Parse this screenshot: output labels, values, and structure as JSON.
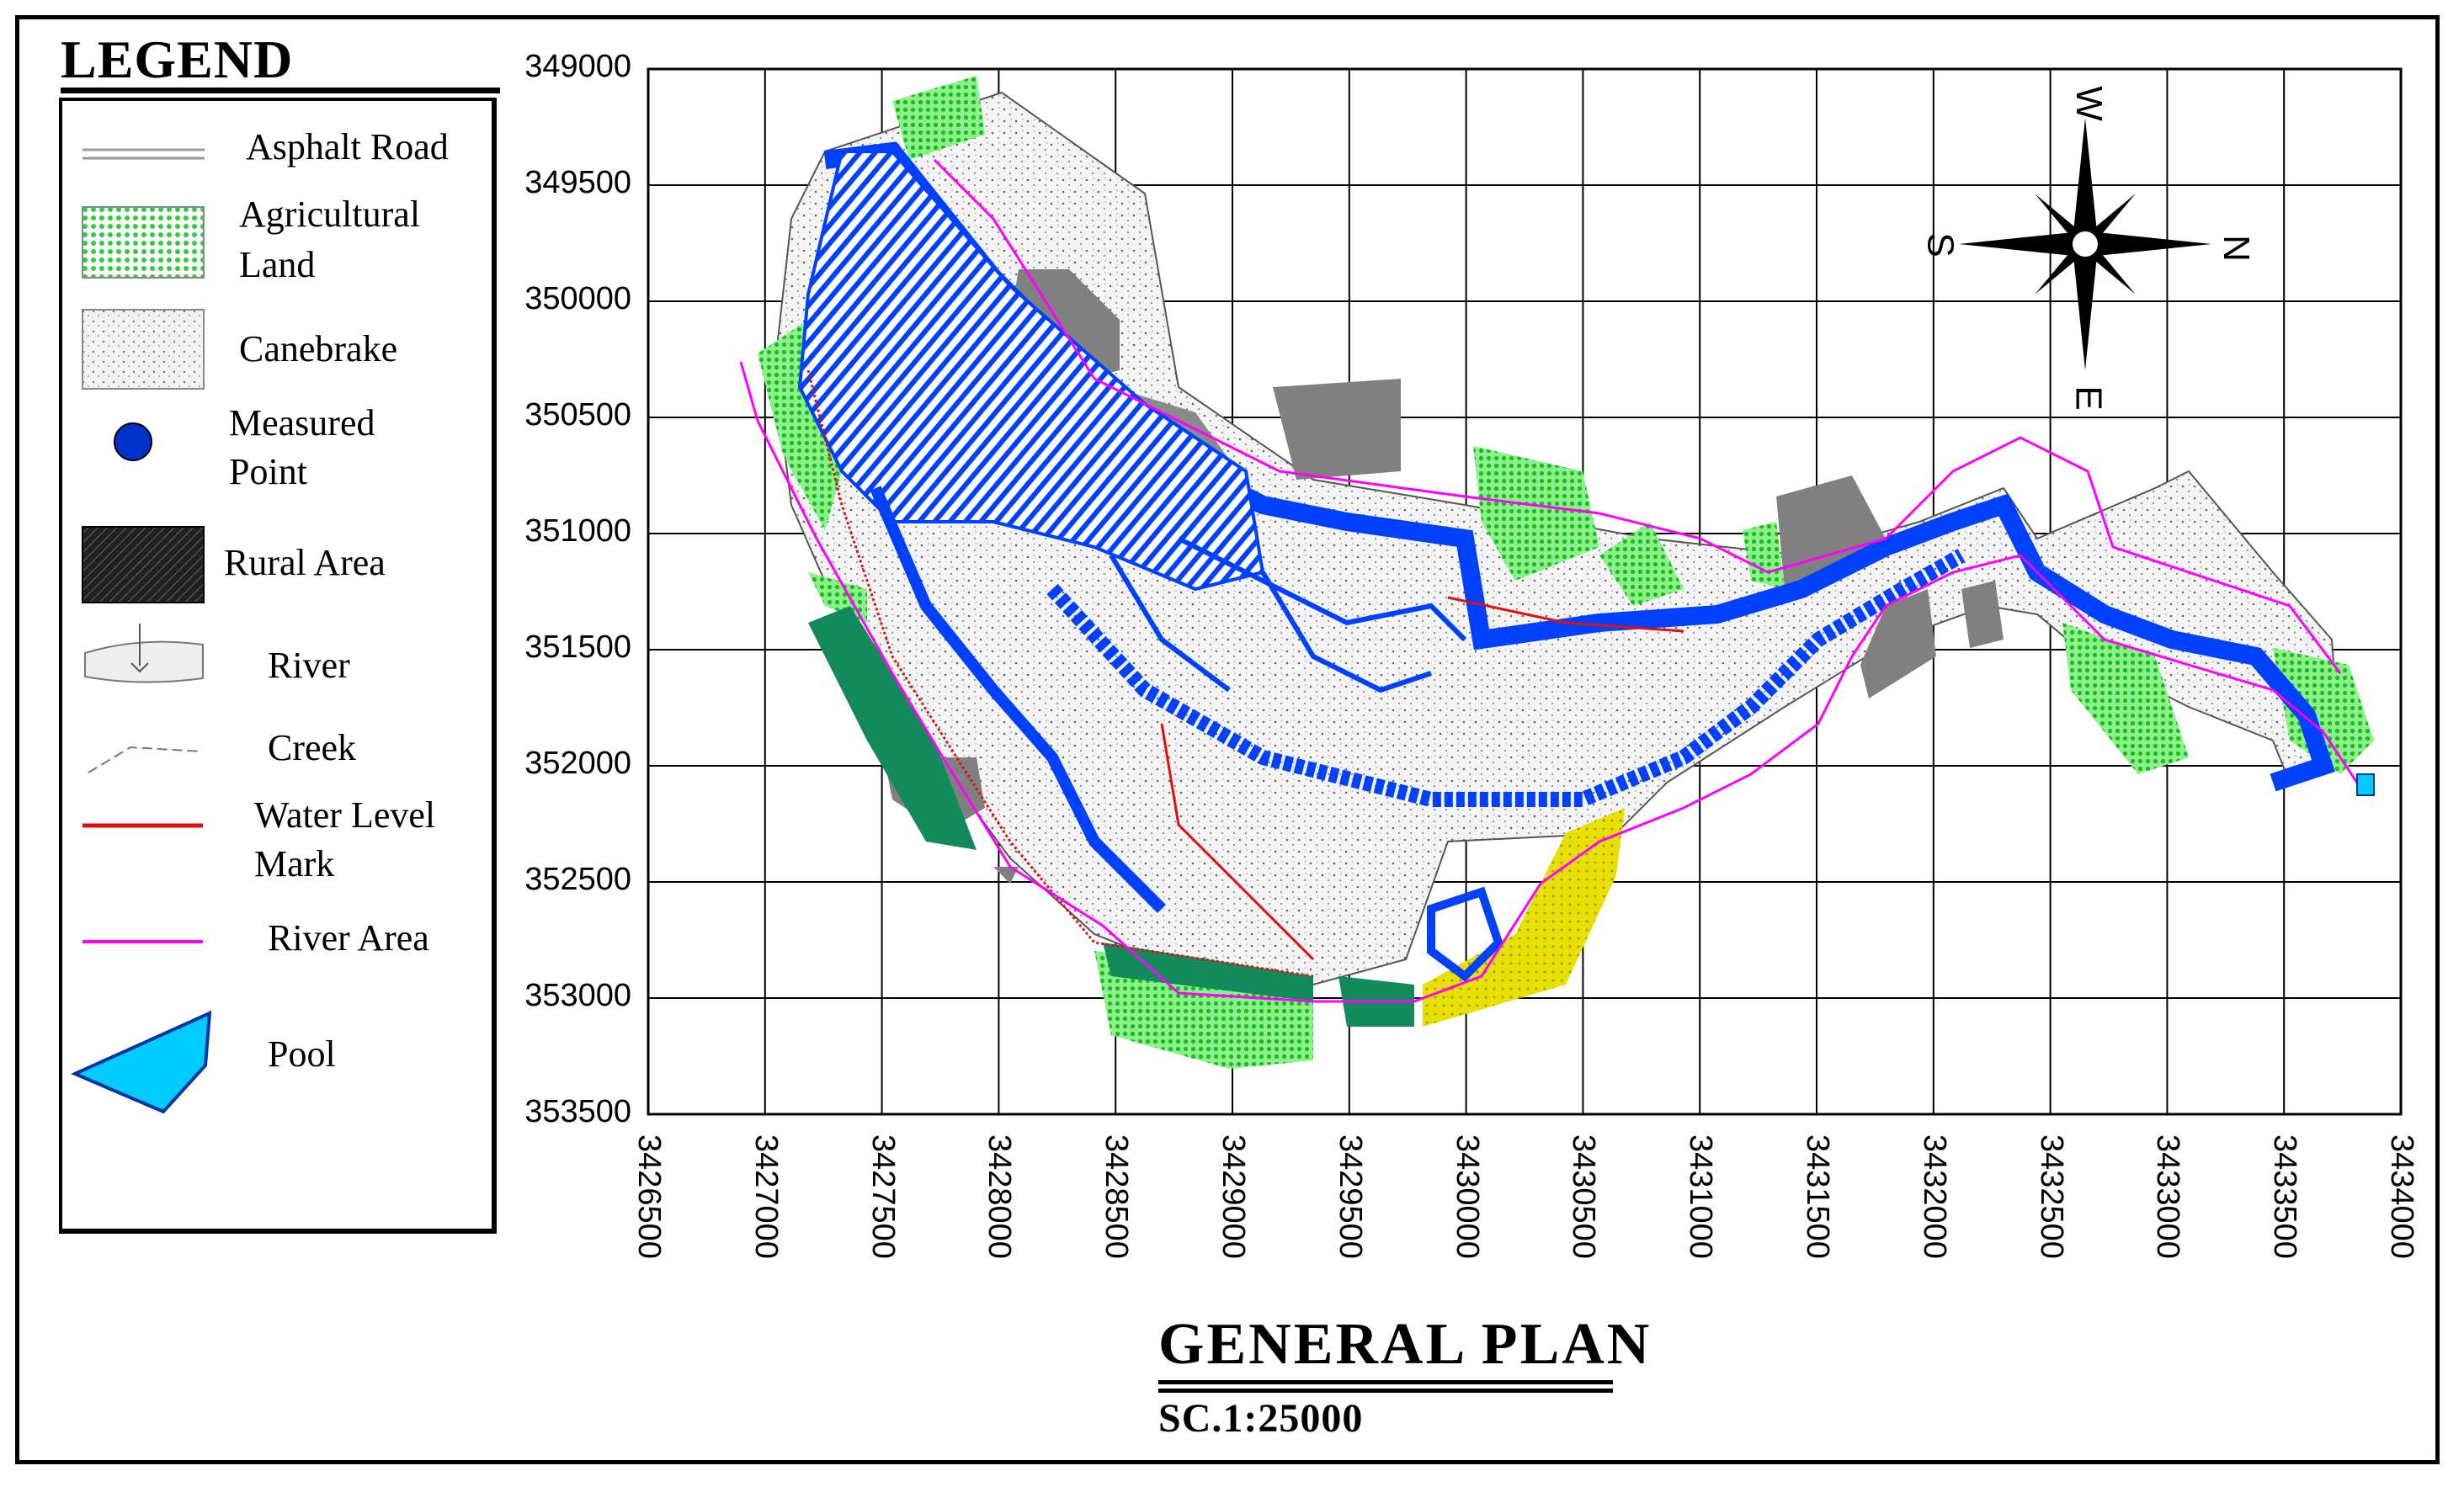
{
  "legend": {
    "title": "LEGEND",
    "items": [
      {
        "label_lines": [
          "Asphalt Road"
        ],
        "icon": "asphalt-road-icon"
      },
      {
        "label_lines": [
          "Agricultural",
          "Land"
        ],
        "icon": "agricultural-land-icon",
        "color": "#3cdc3c"
      },
      {
        "label_lines": [
          "Canebrake"
        ],
        "icon": "canebrake-icon",
        "color": "#e8e8e8"
      },
      {
        "label_lines": [
          "Measured",
          "Point"
        ],
        "icon": "measured-point-icon",
        "color": "#0033cc"
      },
      {
        "label_lines": [
          "Rural Area"
        ],
        "icon": "rural-area-icon",
        "color": "#333333"
      },
      {
        "label_lines": [
          "River"
        ],
        "icon": "river-icon"
      },
      {
        "label_lines": [
          "Creek"
        ],
        "icon": "creek-icon"
      },
      {
        "label_lines": [
          "Water Level",
          "Mark"
        ],
        "icon": "water-level-mark-icon",
        "color": "#e01010"
      },
      {
        "label_lines": [
          "River Area"
        ],
        "icon": "river-area-icon",
        "color": "#ff00ff"
      },
      {
        "label_lines": [
          "Pool"
        ],
        "icon": "pool-icon",
        "color": "#00ccff"
      }
    ]
  },
  "grid": {
    "y_labels": [
      "349000",
      "349500",
      "350000",
      "350500",
      "351000",
      "351500",
      "352000",
      "352500",
      "353000",
      "353500"
    ],
    "x_labels": [
      "3426500",
      "3427000",
      "3427500",
      "3428000",
      "3428500",
      "3429000",
      "3429500",
      "3430000",
      "3430500",
      "3431000",
      "3431500",
      "3432000",
      "3432500",
      "3433000",
      "3433500",
      "3434000"
    ]
  },
  "compass": {
    "w": "W",
    "n": "N",
    "s": "S",
    "e": "E"
  },
  "plan": {
    "title": "GENERAL  PLAN",
    "scale": "SC.1:25000"
  },
  "colors": {
    "agricultural": "#3cdc3c",
    "canebrake": "#e6e6e6",
    "rural": "#808080",
    "river": "#0040ff",
    "water_level": "#e01010",
    "river_area": "#ff00ff",
    "dark_green": "#128a5c",
    "yellow": "#e8e000"
  }
}
